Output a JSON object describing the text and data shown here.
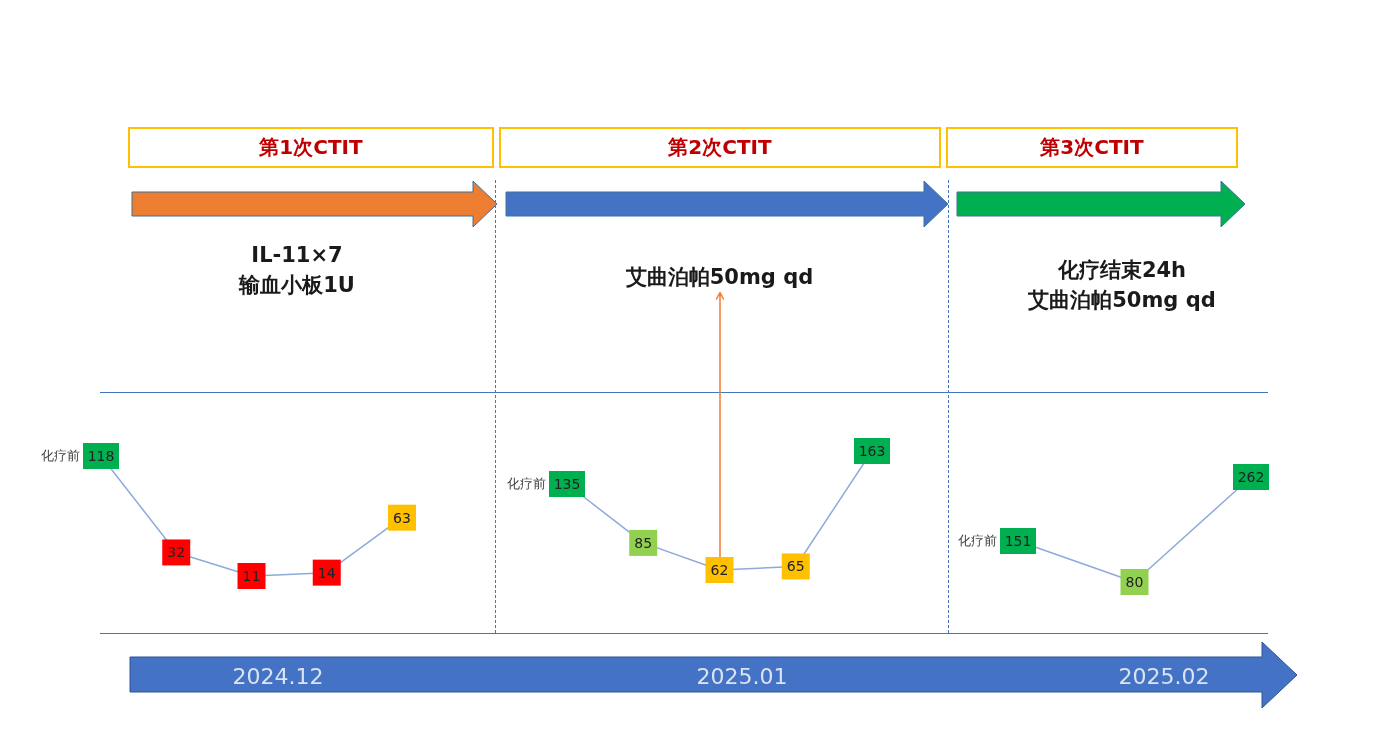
{
  "chart_data": [
    {
      "type": "line",
      "title": "第1次CTIT",
      "subtitle": "IL-11×7\n输血小板1U",
      "xlabel": "2024.12",
      "categories": [
        null,
        null,
        null,
        null,
        null
      ],
      "values": [
        118,
        32,
        11,
        14,
        63
      ],
      "color": "#8eaadb",
      "colors": [
        "#00b050",
        "#ff0000",
        "#ff0000",
        "#ff0000",
        "#ffc000"
      ],
      "marker": "square",
      "data_labels": true,
      "tick_labels": false,
      "annotations": [
        "化疗前"
      ]
    },
    {
      "type": "line",
      "title": "第2次CTIT",
      "xlabel": "2025.01",
      "categories": [
        null,
        null,
        null,
        null,
        null
      ],
      "values": [
        135,
        85,
        62,
        65,
        163
      ],
      "color": "#8eaadb",
      "colors": [
        "#00b050",
        "#92d050",
        "#ffc000",
        "#ffc000",
        "#00b050"
      ],
      "marker": "square",
      "data_labels": true,
      "tick_labels": false,
      "annotations": [
        "化疗前",
        {
          "text": "艾曲泊帕50mg qd",
          "y": 62
        }
      ]
    },
    {
      "type": "line",
      "title": "第3次CTIT",
      "subtitle": "化疗结束24h\n艾曲泊帕50mg qd",
      "xlabel": "2025.02",
      "categories": [
        null,
        null,
        null
      ],
      "values": [
        151,
        80,
        262
      ],
      "color": "#8eaadb",
      "colors": [
        "#00b050",
        "#92d050",
        "#00b050"
      ],
      "marker": "square",
      "data_labels": true,
      "tick_labels": false,
      "annotations": [
        "化疗前"
      ]
    }
  ]
}
